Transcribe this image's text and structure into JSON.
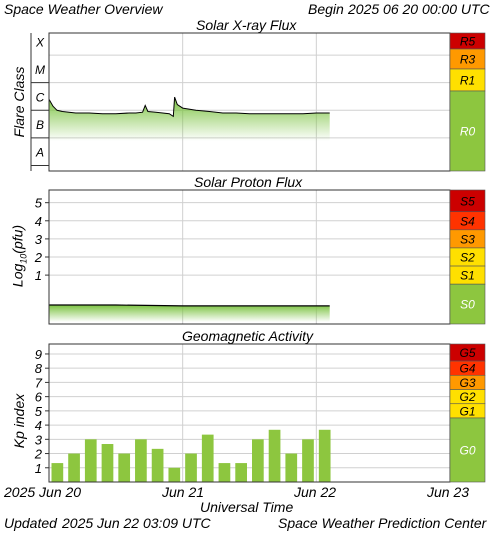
{
  "header": {
    "title": "Space Weather Overview",
    "begin_label": "Begin",
    "begin_date": "2025 06 20 00:00 UTC"
  },
  "footer": {
    "updated_label": "Updated",
    "updated_date": "2025 Jun 22 03:09 UTC",
    "credit": "Space Weather Prediction Center"
  },
  "x_axis": {
    "label": "Universal Time",
    "ticks": [
      "2025 Jun 20",
      "Jun 21",
      "Jun 22",
      "Jun 23"
    ],
    "range_days": [
      0,
      3
    ]
  },
  "colors": {
    "plot_border": "#333333",
    "grid": "#d0d0d0",
    "line": "#000000",
    "fill_green": "#7cc342",
    "scale_green": "#8dc63f",
    "yellow": "#ffe000",
    "orange": "#ff9900",
    "red_orange": "#ff3300",
    "dark_red": "#cc0000"
  },
  "chart_data": [
    {
      "type": "line",
      "title": "Solar X-ray Flux",
      "ylabel": "Flare Class",
      "y_scale": "log",
      "y_ticks": [
        "A",
        "B",
        "C",
        "M",
        "X"
      ],
      "scale_levels": [
        "R5",
        "R3",
        "R1",
        "R0"
      ],
      "series": [
        {
          "x_days": [
            0,
            0.03,
            0.06,
            0.1,
            0.15,
            0.2,
            0.3,
            0.4,
            0.5,
            0.6,
            0.65,
            0.7,
            0.72,
            0.74,
            0.8,
            0.85,
            0.9,
            0.93,
            0.94,
            0.96,
            1.0,
            1.1,
            1.2,
            1.3,
            1.4,
            1.5,
            1.6,
            1.7,
            1.8,
            1.9,
            2.0,
            2.05,
            2.1
          ],
          "y_class": [
            "C2.5",
            "C1.4",
            "C1.0",
            "B9",
            "B8.5",
            "B8",
            "B8",
            "B7.5",
            "B7.5",
            "B8",
            "B8",
            "B8.5",
            "C1.5",
            "B9",
            "B8.5",
            "B8",
            "B7.5",
            "B6",
            "C3",
            "C1.6",
            "C1.2",
            "C1.0",
            "B9",
            "B8",
            "B8",
            "B7.5",
            "B7.5",
            "B7.5",
            "B7.5",
            "B7.5",
            "B8",
            "B8",
            "B8"
          ]
        }
      ]
    },
    {
      "type": "line",
      "title": "Solar Proton Flux",
      "ylabel": "Log10(pfu)",
      "y_ticks": [
        1,
        2,
        3,
        4,
        5
      ],
      "ylim": [
        -1.7,
        5.7
      ],
      "scale_levels": [
        "S5",
        "S4",
        "S3",
        "S2",
        "S1",
        "S0"
      ],
      "series": [
        {
          "x_days": [
            0,
            0.5,
            1.0,
            1.5,
            2.0,
            2.1
          ],
          "values": [
            -0.65,
            -0.65,
            -0.7,
            -0.7,
            -0.7,
            -0.7
          ]
        }
      ]
    },
    {
      "type": "bar",
      "title": "Geomagnetic Activity",
      "ylabel": "Kp index",
      "y_ticks": [
        1,
        2,
        3,
        4,
        5,
        6,
        7,
        8,
        9
      ],
      "ylim": [
        0,
        9.7
      ],
      "bar_width_days": 0.125,
      "values": [
        1.33,
        2.0,
        3.0,
        2.67,
        2.0,
        3.0,
        2.33,
        1.0,
        2.0,
        3.33,
        1.33,
        1.33,
        3.0,
        3.67,
        2.0,
        3.0,
        3.67
      ],
      "scale_levels": [
        "G5",
        "G4",
        "G3",
        "G2",
        "G1",
        "G0"
      ]
    }
  ]
}
